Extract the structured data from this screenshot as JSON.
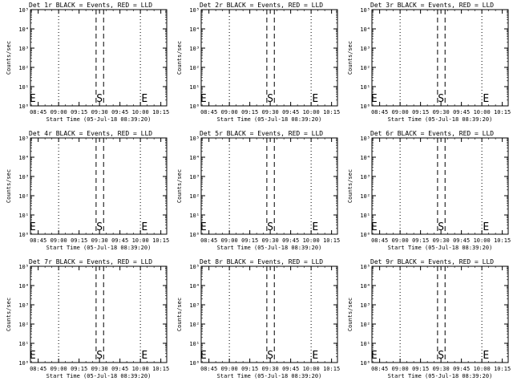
{
  "chart_data": {
    "type": "line",
    "yscale": "log",
    "ylim": [
      1,
      100000
    ],
    "y_tick_labels": [
      "10⁰",
      "10¹",
      "10²",
      "10³",
      "10⁴",
      "10⁵"
    ],
    "ylabel": "Counts/sec",
    "xlabel": "Start Time (05-Jul-18 08:39:20)",
    "x_tick_labels": [
      "08:45",
      "09:00",
      "09:15",
      "09:30",
      "09:45",
      "10:00",
      "10:15"
    ],
    "x_range_minutes": [
      519.33,
      619.33
    ],
    "x_tick_minutes": [
      525,
      540,
      555,
      570,
      585,
      600,
      615
    ],
    "dotted_lines_minutes": [
      540,
      600
    ],
    "dashed_lines_minutes": [
      567.5,
      573
    ],
    "panels": [
      {
        "title": "Det 1r BLACK = Events, RED = LLD",
        "markers": [
          {
            "label": "E",
            "x": 521
          },
          {
            "label": "S",
            "x": 570
          },
          {
            "label": "E",
            "x": 603
          }
        ]
      },
      {
        "title": "Det 2r BLACK = Events, RED = LLD",
        "markers": [
          {
            "label": "E",
            "x": 521
          },
          {
            "label": "S",
            "x": 570
          },
          {
            "label": "E",
            "x": 603
          }
        ]
      },
      {
        "title": "Det 3r BLACK = Events, RED = LLD",
        "markers": [
          {
            "label": "E",
            "x": 521
          },
          {
            "label": "S",
            "x": 570
          },
          {
            "label": "E",
            "x": 603
          }
        ]
      },
      {
        "title": "Det 4r BLACK = Events, RED = LLD",
        "markers": [
          {
            "label": "E",
            "x": 521
          },
          {
            "label": "S",
            "x": 570
          },
          {
            "label": "E",
            "x": 603
          }
        ]
      },
      {
        "title": "Det 5r BLACK = Events, RED = LLD",
        "markers": [
          {
            "label": "E",
            "x": 521
          },
          {
            "label": "S",
            "x": 570
          },
          {
            "label": "E",
            "x": 603
          }
        ]
      },
      {
        "title": "Det 6r BLACK = Events, RED = LLD",
        "markers": [
          {
            "label": "E",
            "x": 521
          },
          {
            "label": "S",
            "x": 570
          },
          {
            "label": "E",
            "x": 603
          }
        ]
      },
      {
        "title": "Det 7r BLACK = Events, RED = LLD",
        "markers": [
          {
            "label": "E",
            "x": 521
          },
          {
            "label": "S",
            "x": 570
          },
          {
            "label": "E",
            "x": 603
          }
        ]
      },
      {
        "title": "Det 8r BLACK = Events, RED = LLD",
        "markers": [
          {
            "label": "E",
            "x": 521
          },
          {
            "label": "S",
            "x": 570
          },
          {
            "label": "E",
            "x": 603
          }
        ]
      },
      {
        "title": "Det 9r BLACK = Events, RED = LLD",
        "markers": [
          {
            "label": "E",
            "x": 521
          },
          {
            "label": "S",
            "x": 570
          },
          {
            "label": "E",
            "x": 603
          }
        ]
      }
    ]
  }
}
